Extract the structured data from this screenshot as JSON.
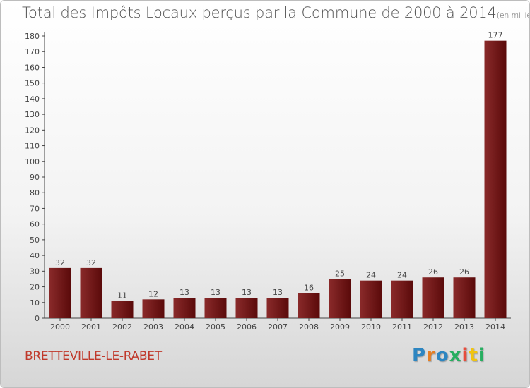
{
  "title": {
    "main": "Total des Impôts Locaux perçus par la Commune de 2000 à 2014",
    "unit": "(en milliers d'€)"
  },
  "commune": "BRETTEVILLE-LE-RABET",
  "logo": {
    "text": "Proxiti",
    "letters": [
      {
        "ch": "P",
        "color": "#2e86c1"
      },
      {
        "ch": "r",
        "color": "#e67e22"
      },
      {
        "ch": "o",
        "color": "#2e86c1"
      },
      {
        "ch": "x",
        "color": "#27ae60"
      },
      {
        "ch": "i",
        "color": "#e74c3c"
      },
      {
        "ch": "t",
        "color": "#f1c40f"
      },
      {
        "ch": "i",
        "color": "#27ae60"
      }
    ]
  },
  "chart_data": {
    "type": "bar",
    "title": "Total des Impôts Locaux perçus par la Commune de 2000 à 2014",
    "unit": "(en milliers d'€)",
    "categories": [
      "2000",
      "2001",
      "2002",
      "2003",
      "2004",
      "2005",
      "2006",
      "2007",
      "2008",
      "2009",
      "2010",
      "2011",
      "2012",
      "2013",
      "2014"
    ],
    "values": [
      32,
      32,
      11,
      12,
      13,
      13,
      13,
      13,
      16,
      25,
      24,
      24,
      26,
      26,
      177
    ],
    "ylim": [
      0,
      180
    ],
    "yticks": [
      0,
      10,
      20,
      30,
      40,
      50,
      60,
      70,
      80,
      90,
      100,
      110,
      120,
      130,
      140,
      150,
      160,
      170,
      180
    ],
    "xlabel": "",
    "ylabel": "",
    "bar_color_light": "#8a2a2a",
    "bar_color_dark": "#5a0a0a",
    "grid": false,
    "legend": "none"
  }
}
